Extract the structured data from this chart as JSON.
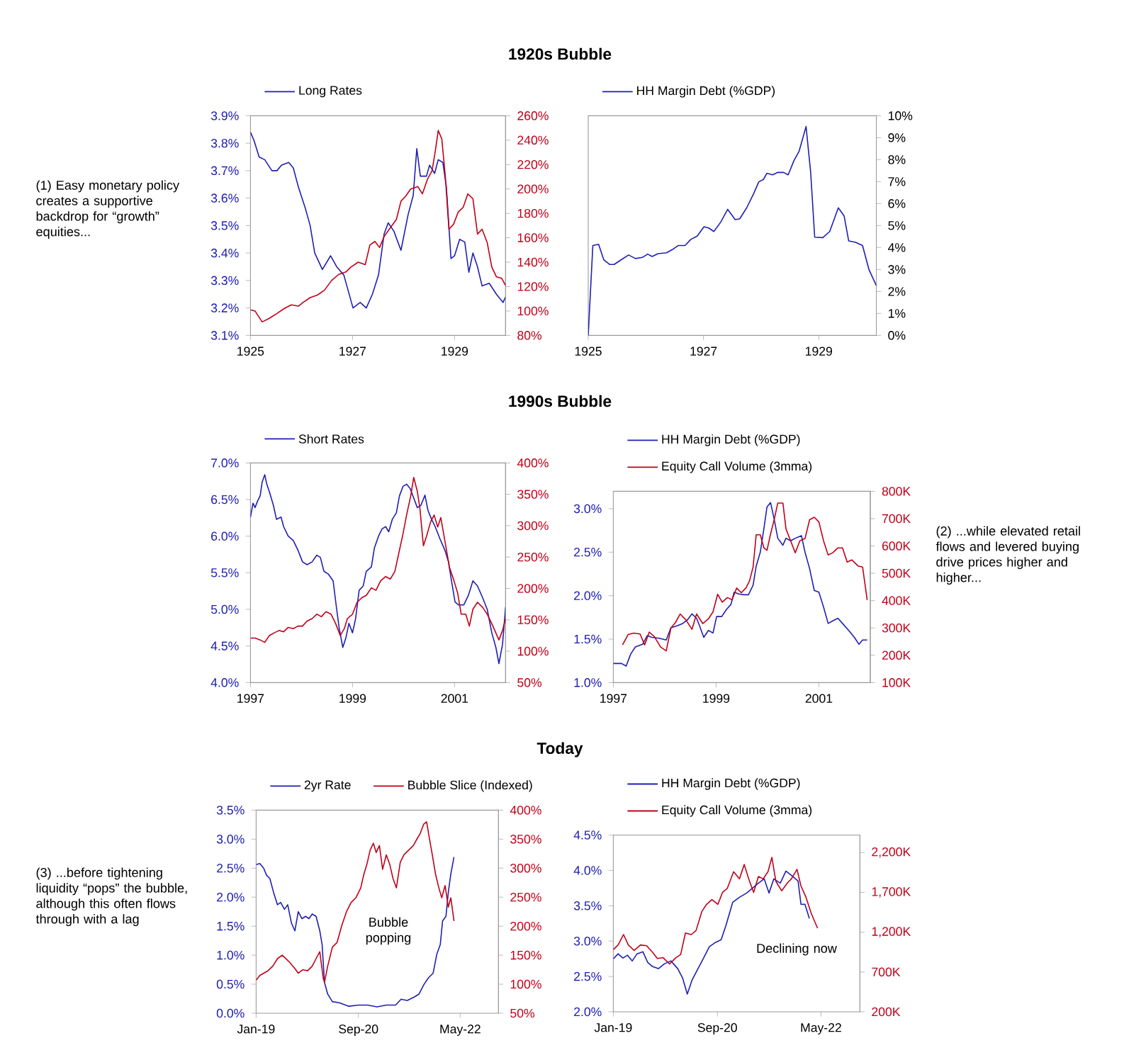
{
  "chart_data": [
    {
      "type": "line",
      "title": "1920s Bubble",
      "annotations": [
        "(1) Easy monetary policy creates a supportive backdrop for “growth” equities..."
      ],
      "legend": "top",
      "xlim": [
        1925,
        1930
      ],
      "xticks": [
        1925,
        1927,
        1929
      ],
      "ylim": [
        3.1,
        3.9
      ],
      "yticks": [
        {
          "value": 3.1,
          "label": "3.1%"
        },
        {
          "value": 3.2,
          "label": "3.2%"
        },
        {
          "value": 3.3,
          "label": "3.3%"
        },
        {
          "value": 3.4,
          "label": "3.4%"
        },
        {
          "value": 3.5,
          "label": "3.5%"
        },
        {
          "value": 3.6,
          "label": "3.6%"
        },
        {
          "value": 3.7,
          "label": "3.7%"
        },
        {
          "value": 3.8,
          "label": "3.8%"
        },
        {
          "value": 3.9,
          "label": "3.9%"
        }
      ],
      "y2lim": [
        80,
        260
      ],
      "y2ticks": [
        {
          "value": 80,
          "label": "80%"
        },
        {
          "value": 100,
          "label": "100%"
        },
        {
          "value": 120,
          "label": "120%"
        },
        {
          "value": 140,
          "label": "140%"
        },
        {
          "value": 160,
          "label": "160%"
        },
        {
          "value": 180,
          "label": "180%"
        },
        {
          "value": 200,
          "label": "200%"
        },
        {
          "value": 220,
          "label": "220%"
        },
        {
          "value": 240,
          "label": "240%"
        },
        {
          "value": 260,
          "label": "260%"
        }
      ],
      "series": [
        {
          "name": "Long Rates",
          "color": "#1f1fb4",
          "x": [
            1925.0,
            1925.07,
            1925.17,
            1925.28,
            1925.42,
            1925.52,
            1925.61,
            1925.75,
            1925.84,
            1925.94,
            1926.08,
            1926.17,
            1926.26,
            1926.41,
            1926.57,
            1926.69,
            1926.83,
            1927.01,
            1927.15,
            1927.27,
            1927.39,
            1927.51,
            1927.62,
            1927.7,
            1927.81,
            1927.95,
            1928.09,
            1928.19,
            1928.26,
            1928.33,
            1928.45,
            1928.51,
            1928.61,
            1928.68,
            1928.77,
            1928.84,
            1928.93,
            1929.0,
            1929.1,
            1929.2,
            1929.28,
            1929.36,
            1929.45,
            1929.54,
            1929.68,
            1929.82,
            1929.95,
            1930.0
          ],
          "values": [
            3.84,
            3.81,
            3.75,
            3.74,
            3.7,
            3.7,
            3.72,
            3.73,
            3.71,
            3.64,
            3.56,
            3.5,
            3.4,
            3.34,
            3.39,
            3.35,
            3.32,
            3.2,
            3.22,
            3.2,
            3.25,
            3.32,
            3.47,
            3.51,
            3.48,
            3.41,
            3.54,
            3.61,
            3.78,
            3.68,
            3.68,
            3.72,
            3.69,
            3.74,
            3.73,
            3.64,
            3.38,
            3.39,
            3.45,
            3.44,
            3.33,
            3.4,
            3.35,
            3.28,
            3.29,
            3.25,
            3.22,
            3.24
          ]
        },
        {
          "color": "#c00018",
          "axis": "y2",
          "x": [
            1925.0,
            1925.09,
            1925.23,
            1925.37,
            1925.52,
            1925.66,
            1925.8,
            1925.94,
            1926.03,
            1926.17,
            1926.31,
            1926.45,
            1926.59,
            1926.73,
            1926.87,
            1926.97,
            1927.11,
            1927.25,
            1927.34,
            1927.44,
            1927.53,
            1927.62,
            1927.72,
            1927.86,
            1927.95,
            1928.04,
            1928.14,
            1928.28,
            1928.37,
            1928.47,
            1928.56,
            1928.63,
            1928.68,
            1928.75,
            1928.82,
            1928.89,
            1928.98,
            1929.07,
            1929.17,
            1929.26,
            1929.36,
            1929.45,
            1929.54,
            1929.64,
            1929.73,
            1929.82,
            1929.92,
            1930.0
          ],
          "values": [
            101,
            100,
            91,
            94,
            98,
            102,
            105,
            104,
            107,
            111,
            113,
            117,
            125,
            130,
            132,
            136,
            140,
            138,
            154,
            157,
            152,
            161,
            167,
            175,
            190,
            194,
            200,
            202,
            196,
            208,
            215,
            233,
            248,
            241,
            210,
            167,
            171,
            181,
            185,
            196,
            192,
            163,
            167,
            156,
            136,
            128,
            127,
            121
          ]
        }
      ]
    },
    {
      "type": "line",
      "legend": "top",
      "xlim": [
        1925,
        1930
      ],
      "xticks": [
        1925,
        1927,
        1929
      ],
      "y2lim": [
        0,
        10
      ],
      "y2ticks": [
        {
          "value": 0,
          "label": "0%"
        },
        {
          "value": 1,
          "label": "1%"
        },
        {
          "value": 2,
          "label": "2%"
        },
        {
          "value": 3,
          "label": "3%"
        },
        {
          "value": 4,
          "label": "4%"
        },
        {
          "value": 5,
          "label": "5%"
        },
        {
          "value": 6,
          "label": "6%"
        },
        {
          "value": 7,
          "label": "7%"
        },
        {
          "value": 8,
          "label": "8%"
        },
        {
          "value": 9,
          "label": "9%"
        },
        {
          "value": 10,
          "label": "10%"
        }
      ],
      "series": [
        {
          "name": "HH Margin Debt (%GDP)",
          "color": "#1f1fb4",
          "axis": "y2",
          "x": [
            1925.0,
            1925.08,
            1925.18,
            1925.27,
            1925.37,
            1925.45,
            1925.57,
            1925.7,
            1925.82,
            1925.94,
            1926.03,
            1926.11,
            1926.21,
            1926.36,
            1926.48,
            1926.56,
            1926.68,
            1926.78,
            1926.89,
            1927.01,
            1927.09,
            1927.18,
            1927.3,
            1927.42,
            1927.55,
            1927.63,
            1927.75,
            1927.87,
            1927.96,
            1928.04,
            1928.1,
            1928.2,
            1928.29,
            1928.39,
            1928.47,
            1928.57,
            1928.66,
            1928.78,
            1928.86,
            1928.93,
            1929.07,
            1929.19,
            1929.34,
            1929.44,
            1929.52,
            1929.64,
            1929.76,
            1929.87,
            1930.0
          ],
          "values": [
            0,
            4.09,
            4.15,
            3.44,
            3.23,
            3.23,
            3.44,
            3.66,
            3.5,
            3.55,
            3.7,
            3.59,
            3.72,
            3.76,
            3.94,
            4.09,
            4.09,
            4.37,
            4.52,
            4.95,
            4.89,
            4.73,
            5.16,
            5.74,
            5.27,
            5.31,
            5.81,
            6.45,
            6.99,
            7.1,
            7.38,
            7.31,
            7.42,
            7.42,
            7.31,
            7.96,
            8.39,
            9.51,
            7.42,
            4.47,
            4.45,
            4.73,
            5.81,
            5.44,
            4.3,
            4.24,
            4.09,
            3.01,
            2.26
          ]
        }
      ]
    },
    {
      "type": "line",
      "title": "1990s Bubble",
      "legend": "top",
      "xlim": [
        1997,
        2002
      ],
      "xticks": [
        1997,
        1999,
        2001
      ],
      "ylim": [
        4.0,
        7.0
      ],
      "yticks": [
        {
          "value": 4.0,
          "label": "4.0%"
        },
        {
          "value": 4.5,
          "label": "4.5%"
        },
        {
          "value": 5.0,
          "label": "5.0%"
        },
        {
          "value": 5.5,
          "label": "5.5%"
        },
        {
          "value": 6.0,
          "label": "6.0%"
        },
        {
          "value": 6.5,
          "label": "6.5%"
        },
        {
          "value": 7.0,
          "label": "7.0%"
        }
      ],
      "y2lim": [
        50,
        400
      ],
      "y2ticks": [
        {
          "value": 50,
          "label": "50%"
        },
        {
          "value": 100,
          "label": "100%"
        },
        {
          "value": 150,
          "label": "150%"
        },
        {
          "value": 200,
          "label": "200%"
        },
        {
          "value": 250,
          "label": "250%"
        },
        {
          "value": 300,
          "label": "300%"
        },
        {
          "value": 350,
          "label": "350%"
        },
        {
          "value": 400,
          "label": "400%"
        }
      ],
      "series": [
        {
          "name": "Short Rates",
          "color": "#1f1fb4",
          "x": [
            1997.0,
            1997.05,
            1997.09,
            1997.14,
            1997.19,
            1997.23,
            1997.28,
            1997.32,
            1997.37,
            1997.45,
            1997.51,
            1997.6,
            1997.65,
            1997.74,
            1997.84,
            1997.93,
            1998.02,
            1998.11,
            1998.21,
            1998.3,
            1998.37,
            1998.44,
            1998.53,
            1998.62,
            1998.69,
            1998.74,
            1998.81,
            1998.87,
            1998.93,
            1999.0,
            1999.06,
            1999.13,
            1999.21,
            1999.27,
            1999.37,
            1999.43,
            1999.51,
            1999.58,
            1999.65,
            1999.71,
            1999.78,
            1999.86,
            1999.92,
            1999.99,
            2000.06,
            2000.13,
            2000.2,
            2000.27,
            2000.34,
            2000.42,
            2000.48,
            2000.55,
            2000.62,
            2000.71,
            2000.81,
            2000.88,
            2000.94,
            2001.01,
            2001.08,
            2001.18,
            2001.27,
            2001.36,
            2001.45,
            2001.55,
            2001.64,
            2001.73,
            2001.81,
            2001.87,
            2001.94,
            2002.0
          ],
          "values": [
            6.26,
            6.45,
            6.39,
            6.48,
            6.55,
            6.74,
            6.84,
            6.71,
            6.61,
            6.42,
            6.23,
            6.26,
            6.13,
            6.0,
            5.94,
            5.81,
            5.65,
            5.61,
            5.65,
            5.74,
            5.71,
            5.52,
            5.48,
            5.39,
            5.0,
            4.74,
            4.48,
            4.61,
            4.81,
            4.68,
            4.87,
            5.26,
            5.32,
            5.52,
            5.58,
            5.84,
            6.0,
            6.1,
            6.13,
            6.06,
            6.23,
            6.32,
            6.55,
            6.68,
            6.71,
            6.65,
            6.52,
            6.39,
            6.42,
            6.56,
            6.35,
            6.23,
            6.13,
            5.97,
            5.81,
            5.65,
            5.39,
            5.1,
            5.06,
            5.06,
            5.19,
            5.39,
            5.32,
            5.16,
            5.0,
            4.68,
            4.48,
            4.26,
            4.52,
            5.03
          ]
        },
        {
          "color": "#c00018",
          "axis": "y2",
          "x": [
            1997.0,
            1997.09,
            1997.19,
            1997.28,
            1997.37,
            1997.46,
            1997.56,
            1997.65,
            1997.74,
            1997.84,
            1997.93,
            1998.02,
            1998.11,
            1998.21,
            1998.3,
            1998.39,
            1998.48,
            1998.58,
            1998.67,
            1998.76,
            1998.84,
            1998.9,
            1999.0,
            1999.09,
            1999.18,
            1999.27,
            1999.37,
            1999.46,
            1999.55,
            1999.65,
            1999.74,
            1999.83,
            1999.92,
            1999.99,
            2000.06,
            2000.14,
            2000.2,
            2000.27,
            2000.32,
            2000.39,
            2000.45,
            2000.53,
            2000.6,
            2000.67,
            2000.73,
            2000.81,
            2000.9,
            2000.99,
            2001.06,
            2001.13,
            2001.22,
            2001.29,
            2001.36,
            2001.45,
            2001.55,
            2001.64,
            2001.73,
            2001.81,
            2001.87,
            2001.94,
            2002.0
          ],
          "values": [
            121,
            121,
            118,
            114,
            125,
            129,
            133,
            131,
            138,
            136,
            140,
            140,
            148,
            152,
            159,
            155,
            163,
            159,
            144,
            125,
            136,
            152,
            159,
            178,
            185,
            189,
            201,
            197,
            212,
            219,
            215,
            227,
            261,
            287,
            317,
            347,
            377,
            355,
            328,
            268,
            283,
            306,
            317,
            298,
            313,
            276,
            234,
            212,
            193,
            159,
            159,
            140,
            167,
            178,
            170,
            159,
            144,
            129,
            118,
            133,
            152
          ]
        }
      ]
    },
    {
      "type": "line",
      "annotations": [
        "(2) ...while elevated retail flows and levered buying drive prices higher and higher..."
      ],
      "legend": "top",
      "xlim": [
        1997,
        2002
      ],
      "xticks": [
        1997,
        1999,
        2001
      ],
      "ylim": [
        1.0,
        3.2
      ],
      "yticks": [
        {
          "value": 1.0,
          "label": "1.0%"
        },
        {
          "value": 1.5,
          "label": "1.5%"
        },
        {
          "value": 2.0,
          "label": "2.0%"
        },
        {
          "value": 2.5,
          "label": "2.5%"
        },
        {
          "value": 3.0,
          "label": "3.0%"
        }
      ],
      "y2lim": [
        100,
        800
      ],
      "y2ticks": [
        {
          "value": 100,
          "label": "100K"
        },
        {
          "value": 200,
          "label": "200K"
        },
        {
          "value": 300,
          "label": "300K"
        },
        {
          "value": 400,
          "label": "400K"
        },
        {
          "value": 500,
          "label": "500K"
        },
        {
          "value": 600,
          "label": "600K"
        },
        {
          "value": 700,
          "label": "700K"
        },
        {
          "value": 800,
          "label": "800K"
        }
      ],
      "series": [
        {
          "name": "HH Margin Debt (%GDP)",
          "color": "#1f1fb4",
          "x": [
            1997.0,
            1997.16,
            1997.25,
            1997.34,
            1997.43,
            1997.57,
            1997.66,
            1997.75,
            1997.89,
            1998.03,
            1998.12,
            1998.23,
            1998.35,
            1998.44,
            1998.53,
            1998.62,
            1998.68,
            1998.76,
            1998.85,
            1998.94,
            1999.01,
            1999.11,
            1999.2,
            1999.29,
            1999.35,
            1999.44,
            1999.54,
            1999.63,
            1999.72,
            1999.78,
            1999.86,
            1999.93,
            1999.99,
            2000.06,
            2000.13,
            2000.2,
            2000.3,
            2000.36,
            2000.45,
            2000.54,
            2000.66,
            2000.73,
            2000.82,
            2000.91,
            2001.0,
            2001.09,
            2001.18,
            2001.27,
            2001.37,
            2001.46,
            2001.58,
            2001.69,
            2001.78,
            2001.85,
            2001.94
          ],
          "values": [
            1.22,
            1.22,
            1.19,
            1.33,
            1.41,
            1.44,
            1.54,
            1.52,
            1.51,
            1.49,
            1.63,
            1.65,
            1.68,
            1.72,
            1.79,
            1.74,
            1.65,
            1.52,
            1.6,
            1.57,
            1.76,
            1.76,
            1.84,
            1.9,
            2.04,
            2.02,
            2.01,
            2.01,
            2.12,
            2.34,
            2.5,
            2.77,
            3.02,
            3.07,
            2.88,
            2.66,
            2.58,
            2.66,
            2.63,
            2.66,
            2.69,
            2.5,
            2.31,
            2.06,
            2.04,
            1.87,
            1.68,
            1.71,
            1.74,
            1.68,
            1.6,
            1.52,
            1.44,
            1.49,
            1.49
          ]
        },
        {
          "name": "Equity Call Volume (3mma)",
          "color": "#c00018",
          "axis": "y2",
          "x": [
            1997.18,
            1997.29,
            1997.4,
            1997.52,
            1997.61,
            1997.7,
            1997.8,
            1997.92,
            1998.03,
            1998.12,
            1998.21,
            1998.3,
            1998.41,
            1998.53,
            1998.62,
            1998.74,
            1998.85,
            1998.94,
            1999.03,
            1999.12,
            1999.22,
            1999.31,
            1999.4,
            1999.49,
            1999.58,
            1999.65,
            1999.72,
            1999.78,
            1999.86,
            1999.93,
            1999.99,
            2000.06,
            2000.13,
            2000.2,
            2000.3,
            2000.36,
            2000.45,
            2000.54,
            2000.63,
            2000.73,
            2000.82,
            2000.91,
            2001.0,
            2001.09,
            2001.18,
            2001.27,
            2001.37,
            2001.46,
            2001.55,
            2001.64,
            2001.76,
            2001.85,
            2001.94
          ],
          "values": [
            238,
            276,
            281,
            278,
            238,
            285,
            268,
            230,
            216,
            299,
            320,
            351,
            330,
            295,
            351,
            316,
            333,
            359,
            423,
            394,
            411,
            403,
            446,
            429,
            446,
            472,
            523,
            641,
            641,
            593,
            584,
            644,
            696,
            757,
            757,
            662,
            619,
            575,
            619,
            627,
            696,
            705,
            688,
            619,
            567,
            575,
            593,
            593,
            541,
            549,
            527,
            523,
            402
          ]
        }
      ]
    },
    {
      "type": "line",
      "title": "Today",
      "annotations": [
        "(3) ...before tightening liquidity “pops” the bubble, although this often flows through with a lag",
        "Bubble popping"
      ],
      "legend": "top",
      "xlim": [
        "2019-01-01",
        "2022-12-15"
      ],
      "xticks": [
        {
          "value": "2019-01-01",
          "label": "Jan-19"
        },
        {
          "value": "2020-09-01",
          "label": "Sep-20"
        },
        {
          "value": "2022-05-01",
          "label": "May-22"
        }
      ],
      "ylim": [
        0,
        3.5
      ],
      "yticks": [
        {
          "value": 0,
          "label": "0.0%"
        },
        {
          "value": 0.5,
          "label": "0.5%"
        },
        {
          "value": 1.0,
          "label": "1.0%"
        },
        {
          "value": 1.5,
          "label": "1.5%"
        },
        {
          "value": 2.0,
          "label": "2.0%"
        },
        {
          "value": 2.5,
          "label": "2.5%"
        },
        {
          "value": 3.0,
          "label": "3.0%"
        },
        {
          "value": 3.5,
          "label": "3.5%"
        }
      ],
      "y2lim": [
        50,
        400
      ],
      "y2ticks": [
        {
          "value": 50,
          "label": "50%"
        },
        {
          "value": 100,
          "label": "100%"
        },
        {
          "value": 150,
          "label": "150%"
        },
        {
          "value": 200,
          "label": "200%"
        },
        {
          "value": 250,
          "label": "250%"
        },
        {
          "value": 300,
          "label": "300%"
        },
        {
          "value": 350,
          "label": "350%"
        },
        {
          "value": 400,
          "label": "400%"
        }
      ],
      "series": [
        {
          "name": "2yr Rate",
          "color": "#1f1fb4",
          "x": [
            "2019-01-01",
            "2019-01-23",
            "2019-02-15",
            "2019-03-04",
            "2019-03-24",
            "2019-04-15",
            "2019-05-08",
            "2019-05-27",
            "2019-06-19",
            "2019-07-08",
            "2019-07-31",
            "2019-08-20",
            "2019-09-09",
            "2019-10-01",
            "2019-10-23",
            "2019-11-12",
            "2019-12-01",
            "2019-12-24",
            "2020-01-15",
            "2020-01-29",
            "2020-02-12",
            "2020-03-02",
            "2020-03-30",
            "2020-05-11",
            "2020-07-06",
            "2020-09-01",
            "2020-10-26",
            "2020-12-21",
            "2021-02-15",
            "2021-04-11",
            "2021-05-14",
            "2021-06-20",
            "2021-08-01",
            "2021-08-29",
            "2021-09-26",
            "2021-10-24",
            "2021-11-21",
            "2021-12-13",
            "2022-01-02",
            "2022-01-16",
            "2022-02-05",
            "2022-02-19",
            "2022-03-06",
            "2022-03-25"
          ],
          "values": [
            2.56,
            2.58,
            2.5,
            2.38,
            2.32,
            2.08,
            1.87,
            1.91,
            1.79,
            1.87,
            1.55,
            1.42,
            1.75,
            1.63,
            1.67,
            1.63,
            1.71,
            1.67,
            1.42,
            1.18,
            0.53,
            0.33,
            0.2,
            0.18,
            0.12,
            0.14,
            0.14,
            0.11,
            0.14,
            0.14,
            0.24,
            0.22,
            0.28,
            0.33,
            0.49,
            0.61,
            0.69,
            1.02,
            1.18,
            1.59,
            1.67,
            2.08,
            2.4,
            2.69
          ]
        },
        {
          "name": "Bubble Slice (Indexed)",
          "color": "#c00018",
          "axis": "y2",
          "x": [
            "2019-01-01",
            "2019-01-23",
            "2019-02-15",
            "2019-03-12",
            "2019-04-10",
            "2019-05-08",
            "2019-06-05",
            "2019-06-24",
            "2019-07-22",
            "2019-08-20",
            "2019-09-09",
            "2019-10-06",
            "2019-11-03",
            "2019-12-01",
            "2019-12-24",
            "2020-01-15",
            "2020-02-04",
            "2020-02-12",
            "2020-03-02",
            "2020-03-30",
            "2020-04-27",
            "2020-05-25",
            "2020-06-22",
            "2020-07-20",
            "2020-08-17",
            "2020-09-15",
            "2020-10-04",
            "2020-10-21",
            "2020-11-10",
            "2020-11-29",
            "2020-12-16",
            "2021-01-05",
            "2021-01-24",
            "2021-02-15",
            "2021-03-08",
            "2021-03-27",
            "2021-04-16",
            "2021-05-09",
            "2021-05-31",
            "2021-06-28",
            "2021-07-26",
            "2021-08-18",
            "2021-09-04",
            "2021-09-26",
            "2021-10-13",
            "2021-10-30",
            "2021-11-16",
            "2021-12-05",
            "2021-12-25",
            "2022-01-11",
            "2022-01-31",
            "2022-02-19",
            "2022-03-06",
            "2022-03-25"
          ],
          "values": [
            107,
            115,
            119,
            123,
            131,
            144,
            150,
            145,
            137,
            127,
            119,
            125,
            123,
            131,
            144,
            156,
            111,
            103,
            131,
            164,
            172,
            201,
            225,
            241,
            249,
            266,
            290,
            306,
            331,
            343,
            327,
            339,
            298,
            323,
            306,
            282,
            266,
            310,
            323,
            331,
            339,
            351,
            359,
            376,
            380,
            351,
            323,
            290,
            266,
            249,
            270,
            233,
            249,
            209
          ]
        }
      ]
    },
    {
      "type": "line",
      "annotations": [
        "Declining now"
      ],
      "legend": "top",
      "xlim": [
        "2019-01-01",
        "2022-12-15"
      ],
      "xticks": [
        {
          "value": "2019-01-01",
          "label": "Jan-19"
        },
        {
          "value": "2020-09-01",
          "label": "Sep-20"
        },
        {
          "value": "2022-05-01",
          "label": "May-22"
        }
      ],
      "ylim": [
        2.0,
        4.5
      ],
      "yticks": [
        {
          "value": 2.0,
          "label": "2.0%"
        },
        {
          "value": 2.5,
          "label": "2.5%"
        },
        {
          "value": 3.0,
          "label": "3.0%"
        },
        {
          "value": 3.5,
          "label": "3.5%"
        },
        {
          "value": 4.0,
          "label": "4.0%"
        },
        {
          "value": 4.5,
          "label": "4.5%"
        }
      ],
      "y2lim": [
        200,
        2420
      ],
      "y2ticks": [
        {
          "value": 200,
          "label": "200K"
        },
        {
          "value": 700,
          "label": "700K"
        },
        {
          "value": 1200,
          "label": "1,200K"
        },
        {
          "value": 1700,
          "label": "1,700K"
        },
        {
          "value": 2200,
          "label": "2,200K"
        }
      ],
      "series": [
        {
          "name": "HH Margin Debt (%GDP)",
          "color": "#1f1fb4",
          "x": [
            "2019-01-01",
            "2019-01-29",
            "2019-02-26",
            "2019-03-25",
            "2019-04-22",
            "2019-05-20",
            "2019-06-23",
            "2019-07-21",
            "2019-08-18",
            "2019-09-22",
            "2019-10-28",
            "2019-12-04",
            "2020-01-13",
            "2020-02-10",
            "2020-03-09",
            "2020-04-06",
            "2020-05-04",
            "2020-06-10",
            "2020-07-16",
            "2020-08-20",
            "2020-09-23",
            "2020-10-21",
            "2020-11-30",
            "2021-01-09",
            "2021-02-20",
            "2021-03-27",
            "2021-04-30",
            "2021-06-03",
            "2021-07-01",
            "2021-07-29",
            "2021-09-05",
            "2021-10-08",
            "2021-11-14",
            "2021-12-18",
            "2022-01-04",
            "2022-01-27",
            "2022-02-22"
          ],
          "values": [
            2.75,
            2.82,
            2.76,
            2.8,
            2.72,
            2.82,
            2.85,
            2.7,
            2.64,
            2.61,
            2.68,
            2.72,
            2.61,
            2.48,
            2.25,
            2.45,
            2.58,
            2.75,
            2.92,
            2.98,
            3.02,
            3.22,
            3.55,
            3.62,
            3.68,
            3.75,
            3.82,
            3.88,
            3.68,
            3.88,
            3.82,
            3.99,
            3.92,
            3.85,
            3.52,
            3.52,
            3.32
          ]
        },
        {
          "name": "Equity Call Volume (3mma)",
          "color": "#c00018",
          "axis": "y2",
          "x": [
            "2019-01-01",
            "2019-01-29",
            "2019-03-02",
            "2019-03-30",
            "2019-05-03",
            "2019-06-09",
            "2019-07-15",
            "2019-08-18",
            "2019-09-16",
            "2019-10-20",
            "2019-11-26",
            "2020-01-02",
            "2020-01-30",
            "2020-02-27",
            "2020-04-01",
            "2020-04-29",
            "2020-06-02",
            "2020-06-30",
            "2020-07-31",
            "2020-09-04",
            "2020-10-01",
            "2020-10-29",
            "2020-12-05",
            "2021-01-09",
            "2021-02-06",
            "2021-03-04",
            "2021-04-02",
            "2021-04-30",
            "2021-05-28",
            "2021-06-25",
            "2021-07-18",
            "2021-08-10",
            "2021-09-13",
            "2021-10-17",
            "2021-11-09",
            "2021-12-12",
            "2022-01-04",
            "2022-02-02",
            "2022-03-06",
            "2022-04-11"
          ],
          "values": [
            980,
            1040,
            1170,
            1040,
            970,
            1040,
            1030,
            950,
            870,
            880,
            800,
            880,
            920,
            1190,
            1170,
            1220,
            1460,
            1550,
            1610,
            1550,
            1700,
            1750,
            1960,
            1870,
            2050,
            1870,
            1700,
            1900,
            1870,
            1960,
            2140,
            1840,
            1720,
            1820,
            1870,
            1990,
            1780,
            1640,
            1430,
            1250
          ]
        }
      ]
    }
  ]
}
